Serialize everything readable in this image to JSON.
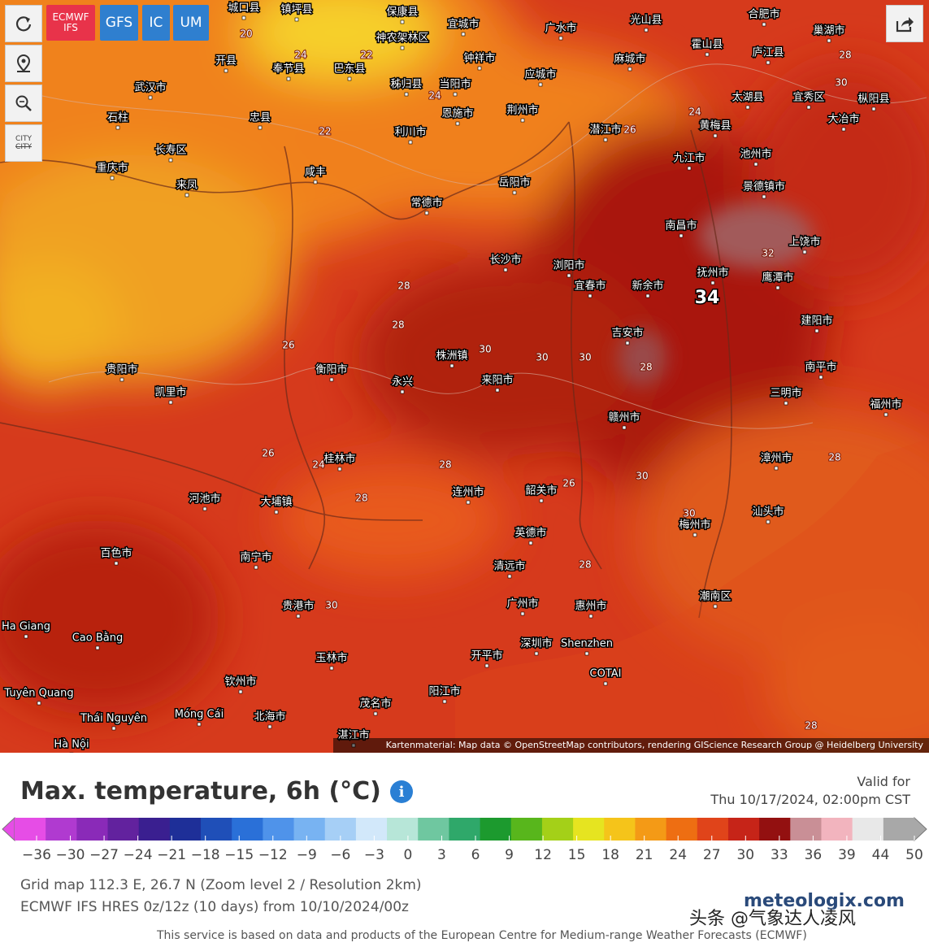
{
  "toolbar": {
    "models": [
      "ECMWF\nIFS",
      "GFS",
      "IC",
      "UM"
    ],
    "city_button": "CITY"
  },
  "map": {
    "cities": [
      "城口县",
      "镇坪县",
      "保康县",
      "宜城市",
      "广水市",
      "光山县",
      "合肥市",
      "巢湖市",
      "开县",
      "神农架林区",
      "钟祥市",
      "麻城市",
      "霍山县",
      "庐江县",
      "奉节县",
      "巴东县",
      "秭归县",
      "当阳市",
      "应城市",
      "武汉市",
      "忠县",
      "利川市",
      "恩施市",
      "荆州市",
      "潜江市",
      "大冶市",
      "黄梅县",
      "太湖县",
      "宜秀区",
      "枞阳县",
      "池州市",
      "石柱",
      "重庆市",
      "长寿区",
      "咸丰",
      "来凤",
      "常德市",
      "岳阳市",
      "九江市",
      "景德镇市",
      "南昌市",
      "上饶市",
      "长沙市",
      "浏阳市",
      "宜春市",
      "新余市",
      "抚州市",
      "鹰潭市",
      "吉安市",
      "建阳市",
      "株洲镇",
      "衡阳市",
      "来阳市",
      "永兴",
      "赣州市",
      "三明市",
      "南平市",
      "福州市",
      "贵阳市",
      "凯里市",
      "桂林市",
      "河池市",
      "大埔镇",
      "连州市",
      "韶关市",
      "英德市",
      "梅州市",
      "漳州市",
      "汕头市",
      "清远市",
      "广州市",
      "惠州市",
      "潮南区",
      "百色市",
      "南宁市",
      "贵港市",
      "玉林市",
      "钦州市",
      "北海市",
      "湛江市",
      "茂名市",
      "阳江市",
      "开平市",
      "深圳市",
      "Shenzhen",
      "COTAI",
      "Cao Bằng",
      "Tuyên Quang",
      "Thái Nguyên",
      "Móng Cái",
      "Hà Nội",
      "Ha Giang"
    ],
    "contours": [
      "20",
      "24",
      "22",
      "22",
      "24",
      "26",
      "24",
      "28",
      "30",
      "32",
      "34",
      "28",
      "26",
      "28",
      "30",
      "30",
      "30",
      "28",
      "26",
      "28",
      "30",
      "28",
      "24",
      "26",
      "28",
      "30",
      "28",
      "30",
      "28"
    ],
    "attribution": "Kartenmaterial: Map data © OpenStreetMap contributors, rendering GIScience Research Group @ Heidelberg University"
  },
  "legend": {
    "title": "Max. temperature, 6h (°C)",
    "valid_label": "Valid for",
    "valid_time": "Thu 10/17/2024, 02:00pm CST",
    "scale_labels": [
      "−36",
      "−30",
      "−27",
      "−24",
      "−21",
      "−18",
      "−15",
      "−12",
      "−9",
      "−6",
      "−3",
      "0",
      "3",
      "6",
      "9",
      "12",
      "15",
      "18",
      "21",
      "24",
      "27",
      "30",
      "33",
      "36",
      "39",
      "44",
      "50"
    ],
    "scale_colors": [
      "#e64de6",
      "#b03ad0",
      "#8a2ab8",
      "#62229e",
      "#3a1f90",
      "#1e2f98",
      "#1f4fb8",
      "#2a70d8",
      "#4f93ea",
      "#78b3f2",
      "#a6cff6",
      "#d2e8fa",
      "#b7e6d8",
      "#6fc7a0",
      "#2fa86a",
      "#1c9a2e",
      "#58b61c",
      "#a4d018",
      "#e6e420",
      "#f5c41a",
      "#f49a16",
      "#ee6e12",
      "#e0441a",
      "#c62418",
      "#931010",
      "#c98f96",
      "#f2b4be",
      "#e8e8e8",
      "#a8a8a8"
    ],
    "grid_info": "Grid map 112.3 E, 26.7 N (Zoom level 2 / Resolution 2km)",
    "model_info": "ECMWF IFS HRES 0z/12z (10 days) from 10/10/2024/00z",
    "logo": "meteologix.com",
    "watermark": "头条 @气象达人凌风",
    "footer": "This service is based on data and products of the European Centre for Medium-range Weather Forecasts (ECMWF)"
  }
}
